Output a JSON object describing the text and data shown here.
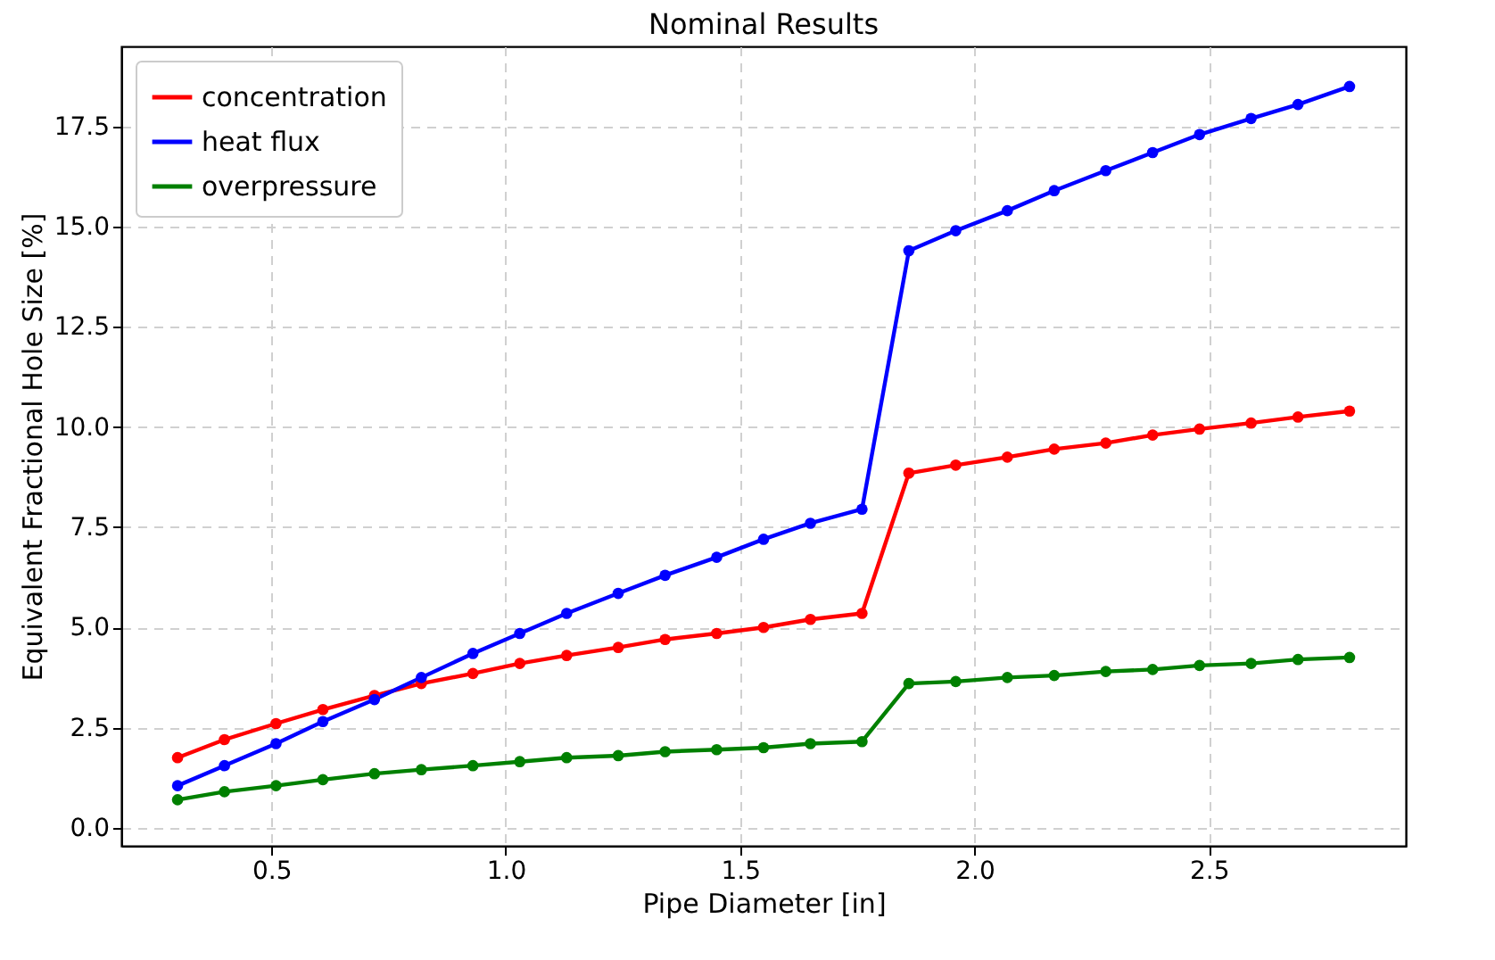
{
  "chart_data": {
    "type": "line",
    "title": "Nominal Results",
    "xlabel": "Pipe Diameter [in]",
    "ylabel": "Equivalent Fractional Hole Size [%]",
    "x": [
      0.3,
      0.4,
      0.51,
      0.61,
      0.72,
      0.82,
      0.93,
      1.03,
      1.13,
      1.24,
      1.34,
      1.45,
      1.55,
      1.65,
      1.76,
      1.86,
      1.96,
      2.07,
      2.17,
      2.28,
      2.38,
      2.48,
      2.59,
      2.69,
      2.8
    ],
    "series": [
      {
        "name": "concentration",
        "color": "#ff0000",
        "values": [
          1.75,
          2.2,
          2.6,
          2.95,
          3.3,
          3.6,
          3.85,
          4.1,
          4.3,
          4.5,
          4.7,
          4.85,
          5.0,
          5.2,
          5.35,
          8.85,
          9.05,
          9.25,
          9.45,
          9.6,
          9.8,
          9.95,
          10.1,
          10.25,
          10.4
        ]
      },
      {
        "name": "heat flux",
        "color": "#0000ff",
        "values": [
          1.05,
          1.55,
          2.1,
          2.65,
          3.2,
          3.75,
          4.35,
          4.85,
          5.35,
          5.85,
          6.3,
          6.75,
          7.2,
          7.6,
          7.95,
          14.4,
          14.9,
          15.4,
          15.9,
          16.4,
          16.85,
          17.3,
          17.7,
          18.05,
          18.5
        ]
      },
      {
        "name": "overpressure",
        "color": "#008000",
        "values": [
          0.7,
          0.9,
          1.05,
          1.2,
          1.35,
          1.45,
          1.55,
          1.65,
          1.75,
          1.8,
          1.9,
          1.95,
          2.0,
          2.1,
          2.15,
          3.6,
          3.65,
          3.75,
          3.8,
          3.9,
          3.95,
          4.05,
          4.1,
          4.2,
          4.25
        ]
      }
    ],
    "xlim": [
      0.18,
      2.92
    ],
    "xticks": [
      0.5,
      {
        "value": 1,
        "label": "1.0"
      },
      1.5,
      {
        "value": 2,
        "label": "2.0"
      },
      2.5
    ],
    "ylim": [
      -0.45,
      19.5
    ],
    "yticks": [
      {
        "value": 0,
        "label": "0.0"
      },
      2.5,
      {
        "value": 5,
        "label": "5.0"
      },
      7.5,
      {
        "value": 10,
        "label": "10.0"
      },
      12.5,
      {
        "value": 15,
        "label": "15.0"
      },
      17.5
    ],
    "grid": true,
    "legend": "top left",
    "marker": "circle",
    "line_style": "solid"
  }
}
